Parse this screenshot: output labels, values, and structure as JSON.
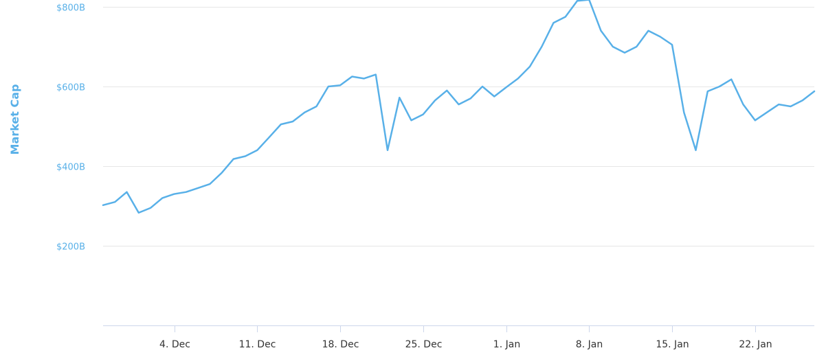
{
  "chart_data": {
    "type": "line",
    "title": "",
    "xlabel": "",
    "ylabel": "Market Cap",
    "x_axis_type": "datetime",
    "x_ticks": [
      {
        "date": "2017-12-04",
        "label": "4. Dec"
      },
      {
        "date": "2017-12-11",
        "label": "11. Dec"
      },
      {
        "date": "2017-12-18",
        "label": "18. Dec"
      },
      {
        "date": "2017-12-25",
        "label": "25. Dec"
      },
      {
        "date": "2018-01-01",
        "label": "1. Jan"
      },
      {
        "date": "2018-01-08",
        "label": "8. Jan"
      },
      {
        "date": "2018-01-15",
        "label": "15. Jan"
      },
      {
        "date": "2018-01-22",
        "label": "22. Jan"
      }
    ],
    "y_ticks": [
      {
        "value": 200,
        "label": "$200B"
      },
      {
        "value": 400,
        "label": "$400B"
      },
      {
        "value": 600,
        "label": "$600B"
      },
      {
        "value": 800,
        "label": "$800B"
      }
    ],
    "ylim": [
      0,
      800
    ],
    "xlim": [
      "2017-11-28",
      "2018-01-27"
    ],
    "y_unit": "billion USD",
    "grid": true,
    "legend": "none",
    "colors": {
      "line": "#58b0e8",
      "axis_title": "#58b0e8",
      "y_tick_label": "#58b0e8",
      "grid": "#e6e6e6",
      "axis_line": "#ccd6eb"
    },
    "series": [
      {
        "points": [
          [
            "2017-11-28",
            302
          ],
          [
            "2017-11-29",
            310
          ],
          [
            "2017-11-30",
            335
          ],
          [
            "2017-12-01",
            283
          ],
          [
            "2017-12-02",
            295
          ],
          [
            "2017-12-03",
            320
          ],
          [
            "2017-12-04",
            330
          ],
          [
            "2017-12-05",
            335
          ],
          [
            "2017-12-06",
            345
          ],
          [
            "2017-12-07",
            355
          ],
          [
            "2017-12-08",
            383
          ],
          [
            "2017-12-09",
            418
          ],
          [
            "2017-12-10",
            425
          ],
          [
            "2017-12-11",
            440
          ],
          [
            "2017-12-12",
            472
          ],
          [
            "2017-12-13",
            505
          ],
          [
            "2017-12-14",
            512
          ],
          [
            "2017-12-15",
            535
          ],
          [
            "2017-12-16",
            550
          ],
          [
            "2017-12-17",
            600
          ],
          [
            "2017-12-18",
            603
          ],
          [
            "2017-12-19",
            625
          ],
          [
            "2017-12-20",
            620
          ],
          [
            "2017-12-21",
            630
          ],
          [
            "2017-12-22",
            440
          ],
          [
            "2017-12-23",
            572
          ],
          [
            "2017-12-24",
            515
          ],
          [
            "2017-12-25",
            530
          ],
          [
            "2017-12-26",
            565
          ],
          [
            "2017-12-27",
            590
          ],
          [
            "2017-12-28",
            555
          ],
          [
            "2017-12-29",
            570
          ],
          [
            "2017-12-30",
            600
          ],
          [
            "2017-12-31",
            575
          ],
          [
            "2018-01-01",
            598
          ],
          [
            "2018-01-02",
            620
          ],
          [
            "2018-01-03",
            650
          ],
          [
            "2018-01-04",
            700
          ],
          [
            "2018-01-05",
            760
          ],
          [
            "2018-01-06",
            775
          ],
          [
            "2018-01-07",
            815
          ],
          [
            "2018-01-08",
            818
          ],
          [
            "2018-01-09",
            740
          ],
          [
            "2018-01-10",
            700
          ],
          [
            "2018-01-11",
            685
          ],
          [
            "2018-01-12",
            700
          ],
          [
            "2018-01-13",
            740
          ],
          [
            "2018-01-14",
            725
          ],
          [
            "2018-01-15",
            705
          ],
          [
            "2018-01-16",
            535
          ],
          [
            "2018-01-17",
            440
          ],
          [
            "2018-01-18",
            588
          ],
          [
            "2018-01-19",
            600
          ],
          [
            "2018-01-20",
            618
          ],
          [
            "2018-01-21",
            555
          ],
          [
            "2018-01-22",
            515
          ],
          [
            "2018-01-23",
            535
          ],
          [
            "2018-01-24",
            555
          ],
          [
            "2018-01-25",
            550
          ],
          [
            "2018-01-26",
            565
          ],
          [
            "2018-01-27",
            588
          ]
        ]
      }
    ]
  }
}
